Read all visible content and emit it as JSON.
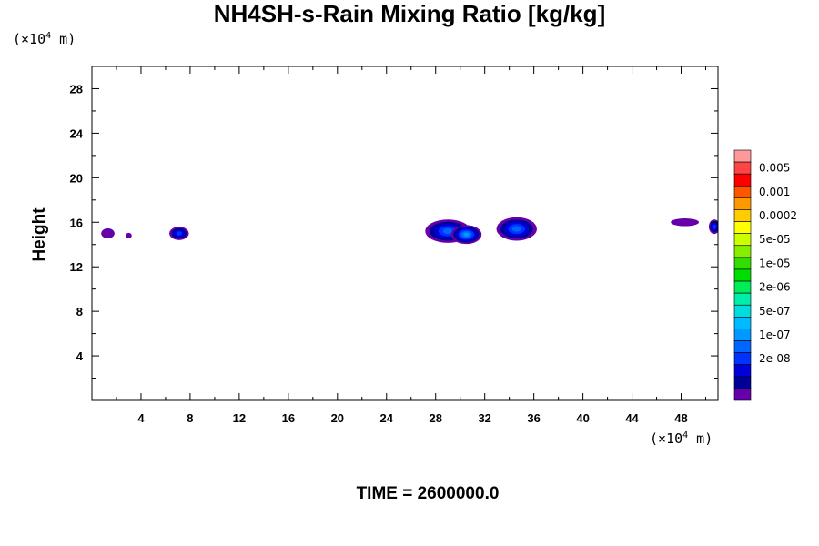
{
  "chart_data": {
    "type": "heatmap",
    "title": "NH4SH-s-Rain Mixing Ratio [kg/kg]",
    "ylabel": "Height",
    "xlabel": "",
    "x_unit_base": "(×10",
    "x_unit_exp": "4",
    "x_unit_tail": " m)",
    "y_unit_base": "(×10",
    "y_unit_exp": "4",
    "y_unit_tail": " m)",
    "xlim": [
      0,
      51
    ],
    "ylim": [
      0,
      30
    ],
    "x_ticks": [
      4,
      8,
      12,
      16,
      20,
      24,
      28,
      32,
      36,
      40,
      44,
      48
    ],
    "y_ticks": [
      4,
      8,
      12,
      16,
      20,
      24,
      28
    ],
    "time_label": "TIME = 2600000.0",
    "colorbar": {
      "labels": [
        "0.005",
        "0.001",
        "0.0002",
        "5e-05",
        "1e-05",
        "2e-06",
        "5e-07",
        "1e-07",
        "2e-08"
      ],
      "colors": [
        "#ff9999",
        "#ff4444",
        "#ff0000",
        "#ff5500",
        "#ff9900",
        "#ffcc00",
        "#ffff00",
        "#ccff00",
        "#88ee00",
        "#33dd00",
        "#00dd00",
        "#00ee55",
        "#00eeaa",
        "#00dddd",
        "#00bbff",
        "#0099ff",
        "#0066ff",
        "#0033ff",
        "#0000dd",
        "#000099",
        "#6600aa"
      ]
    },
    "features": [
      {
        "x": 1.3,
        "y": 15.0,
        "rx": 0.5,
        "ry": 0.4,
        "level": 20
      },
      {
        "x": 3.0,
        "y": 14.8,
        "rx": 0.2,
        "ry": 0.2,
        "level": 20
      },
      {
        "x": 7.1,
        "y": 15.0,
        "rx": 0.75,
        "ry": 0.55,
        "level": 17
      },
      {
        "x": 29.0,
        "y": 15.2,
        "rx": 1.8,
        "ry": 1.0,
        "level": 16
      },
      {
        "x": 30.5,
        "y": 14.9,
        "rx": 1.2,
        "ry": 0.8,
        "level": 15
      },
      {
        "x": 34.6,
        "y": 15.4,
        "rx": 1.6,
        "ry": 1.0,
        "level": 16
      },
      {
        "x": 48.3,
        "y": 16.0,
        "rx": 1.1,
        "ry": 0.3,
        "level": 20
      },
      {
        "x": 50.7,
        "y": 15.6,
        "rx": 0.4,
        "ry": 0.6,
        "level": 17
      }
    ]
  }
}
